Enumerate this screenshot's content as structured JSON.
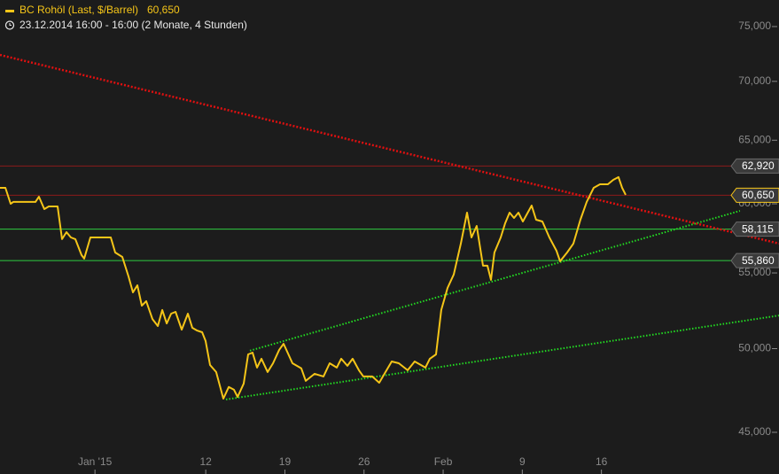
{
  "chart_data": {
    "type": "line",
    "title": "BC Rohöl (Last, $/Barrel)",
    "subtitle": "23.12.2014 16:00 - 16:00 (2 Monate, 4 Stunden)",
    "last": {
      "value": 60650,
      "label": "60,650",
      "color": "#8b1a1a"
    },
    "log_scale": true,
    "xlim": [
      0,
      49.22
    ],
    "ylim": [
      42700,
      77550
    ],
    "xticks": [
      {
        "value": 6,
        "label": "Jan '15"
      },
      {
        "value": 13,
        "label": "12"
      },
      {
        "value": 18,
        "label": "19"
      },
      {
        "value": 23,
        "label": "26"
      },
      {
        "value": 28,
        "label": "Feb"
      },
      {
        "value": 33,
        "label": "9"
      },
      {
        "value": 38,
        "label": "16"
      }
    ],
    "yticks": [
      {
        "value": 75000,
        "label": "75,000"
      },
      {
        "value": 70000,
        "label": "70,000"
      },
      {
        "value": 65000,
        "label": "65,000"
      },
      {
        "value": 60000,
        "label": "60,000"
      },
      {
        "value": 55000,
        "label": "55,000"
      },
      {
        "value": 50000,
        "label": "50,000"
      },
      {
        "value": 45000,
        "label": "45,000"
      }
    ],
    "series": [
      {
        "name": "BC Rohöl (Last, $/Barrel)",
        "color": "#f5c518",
        "x": [
          0,
          0.34,
          0.67,
          0.84,
          2.24,
          2.46,
          2.8,
          3.08,
          3.64,
          3.92,
          4.2,
          4.48,
          4.76,
          5.15,
          5.32,
          5.71,
          7.0,
          7.28,
          7.73,
          8.12,
          8.4,
          8.68,
          8.96,
          9.24,
          9.63,
          9.97,
          10.25,
          10.53,
          10.81,
          11.09,
          11.48,
          11.87,
          12.15,
          12.43,
          12.77,
          12.99,
          13.27,
          13.66,
          14.11,
          14.45,
          14.78,
          15.01,
          15.4,
          15.68,
          15.96,
          16.24,
          16.52,
          16.91,
          17.25,
          17.64,
          17.92,
          18.48,
          19.04,
          19.32,
          19.88,
          20.44,
          20.83,
          21.28,
          21.56,
          21.95,
          22.28,
          22.68,
          22.96,
          23.52,
          23.96,
          24.36,
          24.75,
          25.2,
          25.76,
          26.2,
          26.6,
          26.88,
          27.16,
          27.55,
          27.88,
          28.28,
          28.67,
          29.12,
          29.51,
          29.79,
          30.12,
          30.52,
          30.8,
          31.02,
          31.24,
          31.64,
          31.92,
          32.2,
          32.48,
          32.76,
          33.04,
          33.59,
          33.87,
          34.27,
          34.71,
          35.16,
          35.39,
          35.83,
          36.23,
          36.67,
          37.07,
          37.51,
          37.91,
          38.41,
          38.75,
          39.08,
          39.31,
          39.53
        ],
        "values": [
          61220,
          61220,
          60000,
          60140,
          60140,
          60540,
          59600,
          59800,
          59800,
          57390,
          57900,
          57510,
          57390,
          56250,
          56000,
          57510,
          57510,
          56430,
          56120,
          54760,
          53670,
          54150,
          52780,
          53080,
          51900,
          51440,
          52490,
          51610,
          52250,
          52370,
          51210,
          52250,
          51330,
          51160,
          51040,
          50480,
          48980,
          48550,
          46950,
          47640,
          47480,
          47050,
          47850,
          49640,
          49750,
          48820,
          49370,
          48550,
          49090,
          49920,
          50310,
          49090,
          48770,
          48010,
          48440,
          48280,
          49090,
          48820,
          49370,
          48930,
          49370,
          48660,
          48280,
          48280,
          47900,
          48550,
          49200,
          49090,
          48660,
          49200,
          48980,
          48820,
          49370,
          49640,
          52490,
          53970,
          54890,
          57070,
          59340,
          57510,
          58350,
          55500,
          55500,
          54520,
          56430,
          57510,
          58550,
          59340,
          58940,
          59340,
          58680,
          59870,
          58810,
          58680,
          57510,
          56560,
          55810,
          56430,
          57070,
          58810,
          60140,
          61220,
          61490,
          61490,
          61840,
          62050,
          61220,
          60680
        ]
      }
    ],
    "trendlines": [
      {
        "color": "#e01010",
        "x": [
          0,
          49.22
        ],
        "values": [
          72370,
          57070
        ]
      },
      {
        "color": "#22dd22",
        "x": [
          15.79,
          46.75
        ],
        "values": [
          49870,
          59470
        ]
      },
      {
        "color": "#22dd22",
        "x": [
          14.28,
          49.22
        ],
        "values": [
          46900,
          52130
        ]
      }
    ],
    "levels": [
      {
        "value": 62920,
        "label": "62,920",
        "color": "#8b1a1a"
      },
      {
        "value": 58115,
        "label": "58,115",
        "color": "#2ecc40"
      },
      {
        "value": 55860,
        "label": "55,860",
        "color": "#2ecc40"
      }
    ]
  }
}
